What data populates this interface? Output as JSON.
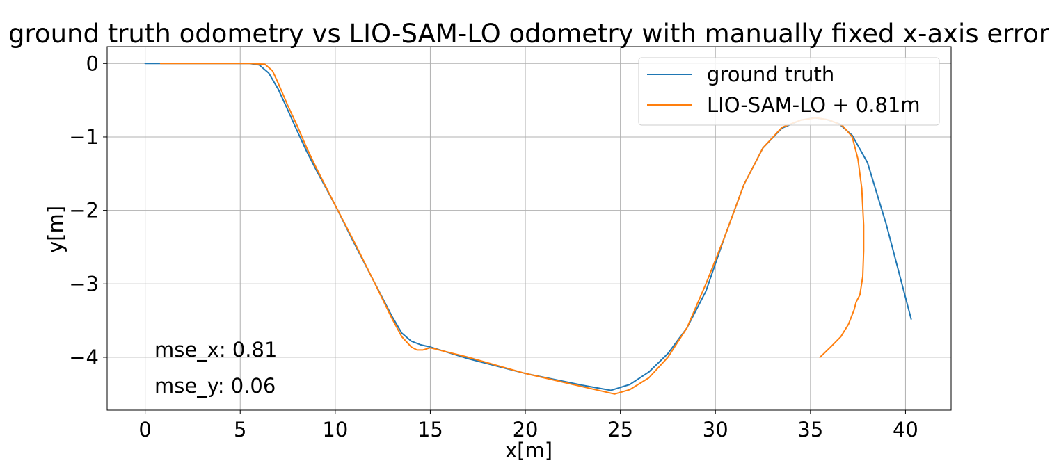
{
  "chart_data": {
    "type": "line",
    "title": "ground truth odometry vs LIO-SAM-LO odometry with manually fixed x-axis error",
    "xlabel": "x[m]",
    "ylabel": "y[m]",
    "xlim": [
      -2,
      42.4
    ],
    "ylim": [
      -4.72,
      0.23
    ],
    "xticks": [
      0,
      5,
      10,
      15,
      20,
      25,
      30,
      35,
      40
    ],
    "xtick_labels": [
      "0",
      "5",
      "10",
      "15",
      "20",
      "25",
      "30",
      "35",
      "40"
    ],
    "yticks": [
      0,
      -1,
      -2,
      -3,
      -4
    ],
    "ytick_labels": [
      "0",
      "−1",
      "−2",
      "−3",
      "−4"
    ],
    "grid": true,
    "legend_position": "top-right",
    "series": [
      {
        "name": "ground truth",
        "color": "#1f77b4",
        "x": [
          0,
          2,
          4,
          5.5,
          6.0,
          6.5,
          7.0,
          7.5,
          8.0,
          8.5,
          9.0,
          10.0,
          11.0,
          12.0,
          13.0,
          13.5,
          14.0,
          14.5,
          15.0,
          17.0,
          20.0,
          23.0,
          24.5,
          25.5,
          26.5,
          27.5,
          28.5,
          29.5,
          30.5,
          31.5,
          32.5,
          33.5,
          34.5,
          35.2,
          35.8,
          36.5,
          37.2,
          38.0,
          39.0,
          40.3
        ],
        "y": [
          0,
          0,
          0,
          0,
          -0.02,
          -0.13,
          -0.35,
          -0.63,
          -0.92,
          -1.2,
          -1.45,
          -1.93,
          -2.45,
          -2.95,
          -3.45,
          -3.67,
          -3.78,
          -3.83,
          -3.86,
          -4.02,
          -4.22,
          -4.38,
          -4.45,
          -4.37,
          -4.2,
          -3.95,
          -3.6,
          -3.1,
          -2.35,
          -1.65,
          -1.15,
          -0.88,
          -0.77,
          -0.74,
          -0.76,
          -0.82,
          -0.98,
          -1.35,
          -2.2,
          -3.48
        ]
      },
      {
        "name": "LIO-SAM-LO + 0.81m",
        "color": "#ff7f0e",
        "x": [
          0.81,
          2,
          4,
          5.5,
          6.3,
          6.7,
          7.0,
          7.5,
          8.0,
          8.5,
          9.0,
          10.0,
          11.0,
          12.0,
          13.0,
          13.5,
          14.0,
          14.3,
          14.6,
          15.0,
          17.0,
          20.0,
          23.0,
          24.7,
          25.5,
          26.5,
          27.5,
          28.5,
          29.5,
          30.5,
          31.5,
          32.5,
          33.5,
          34.5,
          35.3,
          36.0,
          36.7,
          37.2,
          37.5,
          37.7,
          37.8,
          37.8,
          37.75,
          37.6,
          37.4,
          37.3,
          37.0,
          36.6,
          36.1,
          35.5
        ],
        "y": [
          0,
          0,
          0,
          0,
          -0.01,
          -0.1,
          -0.27,
          -0.57,
          -0.85,
          -1.15,
          -1.42,
          -1.93,
          -2.43,
          -2.95,
          -3.48,
          -3.72,
          -3.86,
          -3.9,
          -3.9,
          -3.87,
          -4.0,
          -4.22,
          -4.4,
          -4.5,
          -4.44,
          -4.28,
          -4.0,
          -3.6,
          -3.0,
          -2.35,
          -1.65,
          -1.15,
          -0.87,
          -0.77,
          -0.74,
          -0.77,
          -0.85,
          -1.0,
          -1.3,
          -1.7,
          -2.2,
          -2.55,
          -2.9,
          -3.15,
          -3.25,
          -3.35,
          -3.55,
          -3.72,
          -3.85,
          -4.0
        ]
      }
    ],
    "annotations": [
      "mse_x: 0.81",
      "mse_y: 0.06"
    ]
  }
}
